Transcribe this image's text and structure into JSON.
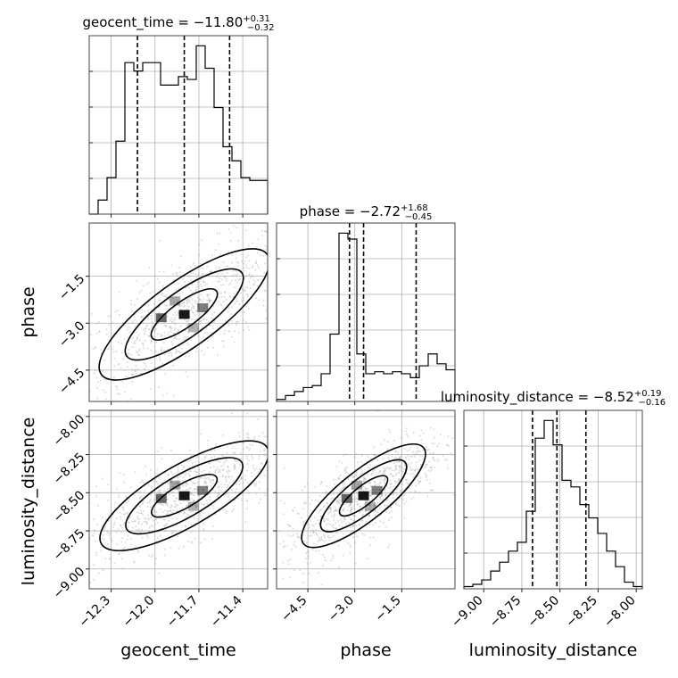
{
  "chart_data": {
    "type": "corner",
    "parameters": [
      "geocent_time",
      "phase",
      "luminosity_distance"
    ],
    "titles": [
      {
        "param": "geocent_time",
        "text": "geocent_time = −11.80",
        "sup": "+0.31",
        "sub": "−0.32"
      },
      {
        "param": "phase",
        "text": "phase = −2.72",
        "sup": "+1.68",
        "sub": "−0.45"
      },
      {
        "param": "luminosity_distance",
        "text": "luminosity_distance = −8.52",
        "sup": "+0.19",
        "sub": "−0.16"
      }
    ],
    "ranges": {
      "geocent_time": [
        -12.45,
        -11.23
      ],
      "phase": [
        -5.5,
        0.2
      ],
      "luminosity_distance": [
        -9.13,
        -7.96
      ]
    },
    "ticks": {
      "geocent_time": {
        "values": [
          -12.3,
          -12.0,
          -11.7,
          -11.4
        ],
        "labels": [
          "−12.3",
          "−12.0",
          "−11.7",
          "−11.4"
        ]
      },
      "phase": {
        "values": [
          -4.5,
          -3.0,
          -1.5
        ],
        "labels": [
          "−4.5",
          "−3.0",
          "−1.5"
        ]
      },
      "luminosity_distance": {
        "values": [
          -9.0,
          -8.75,
          -8.5,
          -8.25,
          -8.0
        ],
        "labels": [
          "−9.00",
          "−8.75",
          "−8.50",
          "−8.25",
          "−8.00"
        ]
      }
    },
    "axis_labels": {
      "geocent_time": "geocent_time",
      "phase": "phase",
      "luminosity_distance": "luminosity_distance"
    },
    "quantiles": {
      "geocent_time": [
        -12.12,
        -11.8,
        -11.49
      ],
      "phase": [
        -3.17,
        -2.72,
        -1.04
      ],
      "luminosity_distance": [
        -8.68,
        -8.52,
        -8.33
      ]
    },
    "histograms": {
      "geocent_time": {
        "bins": 20,
        "counts": [
          0,
          5,
          13,
          26,
          54,
          51,
          54,
          54,
          46,
          46,
          49,
          48,
          60,
          52,
          38,
          24,
          19,
          13,
          12,
          12
        ]
      },
      "phase": {
        "bins": 20,
        "counts": [
          1,
          3,
          5,
          7,
          8,
          14,
          34,
          85,
          82,
          24,
          14,
          15,
          14,
          15,
          14,
          12,
          18,
          24,
          19,
          16
        ]
      },
      "luminosity_distance": {
        "bins": 20,
        "counts": [
          1,
          2,
          4,
          8,
          12,
          17,
          21,
          35,
          68,
          76,
          65,
          49,
          46,
          38,
          32,
          25,
          17,
          10,
          3,
          1
        ]
      }
    },
    "grid": true
  }
}
